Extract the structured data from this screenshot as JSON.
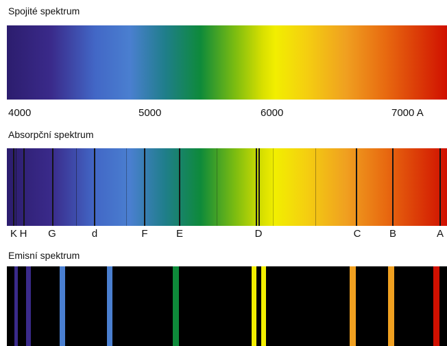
{
  "sections": {
    "continuous": {
      "title": "Spojité spektrum",
      "scale_labels": [
        "4000",
        "5000",
        "6000",
        "7000 A"
      ]
    },
    "absorption": {
      "title": "Absorpční spektrum",
      "line_labels": [
        "K",
        "H",
        "G",
        "d",
        "F",
        "E",
        "D",
        "C",
        "B",
        "A"
      ]
    },
    "emission": {
      "title": "Emisní spektrum"
    }
  },
  "colors": {
    "violet": "#3a2a8a",
    "blue": "#4a7fd0",
    "green": "#0e8a3a",
    "yellow": "#f2ee00",
    "orange": "#f0a020",
    "red": "#d01000",
    "absorption_line": "#141414",
    "emission_background": "#000000"
  }
}
